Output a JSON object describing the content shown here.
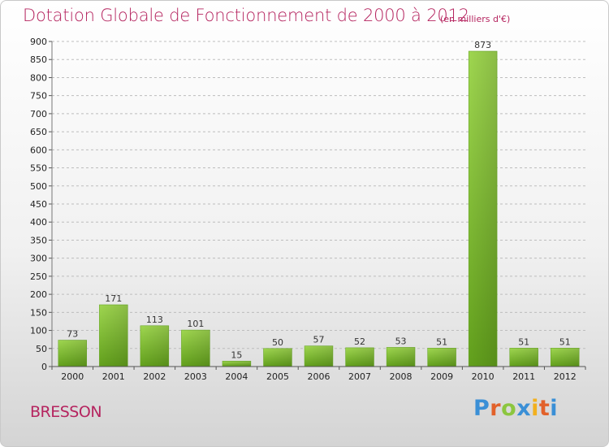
{
  "header": {
    "title": "Dotation Globale de Fonctionnement de 2000 à 2012",
    "subtitle": "(en milliers d'€)"
  },
  "footer": {
    "commune": "BRESSON",
    "logo": {
      "letters": [
        "P",
        "r",
        "o",
        "x",
        "i",
        "t",
        "i"
      ],
      "colors": [
        "#3a8fd6",
        "#e2612a",
        "#8cc63f",
        "#3a8fd6",
        "#f2b01e",
        "#e2612a",
        "#3a8fd6"
      ]
    }
  },
  "chart_data": {
    "type": "bar",
    "title": "Dotation Globale de Fonctionnement de 2000 à 2012",
    "subtitle": "(en milliers d'€)",
    "categories": [
      "2000",
      "2001",
      "2002",
      "2003",
      "2004",
      "2005",
      "2006",
      "2007",
      "2008",
      "2009",
      "2010",
      "2011",
      "2012"
    ],
    "values": [
      73,
      171,
      113,
      101,
      15,
      50,
      57,
      52,
      53,
      51,
      873,
      51,
      51
    ],
    "ylim": [
      0,
      900
    ],
    "yticks": [
      0,
      50,
      100,
      150,
      200,
      250,
      300,
      350,
      400,
      450,
      500,
      550,
      600,
      650,
      700,
      750,
      800,
      850,
      900
    ],
    "grid": true,
    "bar_color": "#7cbf2e",
    "title_color": "#b5245f"
  }
}
